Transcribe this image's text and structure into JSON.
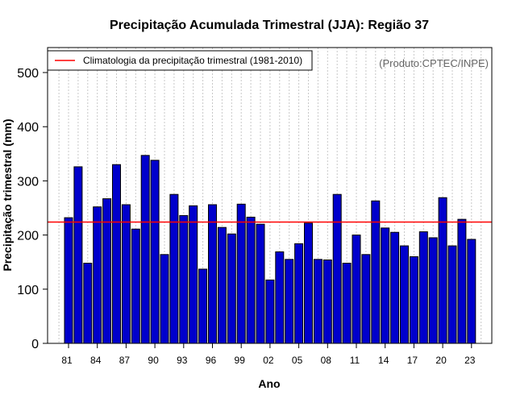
{
  "chart_data": {
    "type": "bar",
    "title": "Precipitação Acumulada Trimestral (JJA): Região 37",
    "xlabel": "Ano",
    "ylabel": "Precipitação trimestral (mm)",
    "ylim": [
      0,
      550
    ],
    "yticks": [
      0,
      100,
      200,
      300,
      400,
      500
    ],
    "credit": "(Produto:CPTEC/INPE)",
    "legend": {
      "label": "Climatologia da precipitação trimestral (1981-2010)",
      "color": "#ff0000",
      "position": "top-left"
    },
    "climatology": 224,
    "bar_color": "#0000cc",
    "years": [
      1981,
      1982,
      1983,
      1984,
      1985,
      1986,
      1987,
      1988,
      1989,
      1990,
      1991,
      1992,
      1993,
      1994,
      1995,
      1996,
      1997,
      1998,
      1999,
      2000,
      2001,
      2002,
      2003,
      2004,
      2005,
      2006,
      2007,
      2008,
      2009,
      2010,
      2011,
      2012,
      2013,
      2014,
      2015,
      2016,
      2017,
      2018,
      2019,
      2020,
      2021,
      2022,
      2023
    ],
    "values": [
      232,
      326,
      148,
      252,
      267,
      330,
      256,
      211,
      347,
      338,
      164,
      275,
      236,
      254,
      137,
      256,
      214,
      202,
      257,
      233,
      220,
      117,
      169,
      155,
      184,
      222,
      155,
      154,
      275,
      148,
      200,
      164,
      263,
      213,
      205,
      180,
      160,
      206,
      195,
      269,
      180,
      229,
      192
    ],
    "xtick_labels": [
      {
        "year": 1981,
        "label": "81"
      },
      {
        "year": 1984,
        "label": "84"
      },
      {
        "year": 1987,
        "label": "87"
      },
      {
        "year": 1990,
        "label": "90"
      },
      {
        "year": 1993,
        "label": "93"
      },
      {
        "year": 1996,
        "label": "96"
      },
      {
        "year": 1999,
        "label": "99"
      },
      {
        "year": 2002,
        "label": "02"
      },
      {
        "year": 2005,
        "label": "05"
      },
      {
        "year": 2008,
        "label": "08"
      },
      {
        "year": 2011,
        "label": "11"
      },
      {
        "year": 2014,
        "label": "14"
      },
      {
        "year": 2017,
        "label": "17"
      },
      {
        "year": 2020,
        "label": "20"
      },
      {
        "year": 2023,
        "label": "23"
      }
    ]
  }
}
